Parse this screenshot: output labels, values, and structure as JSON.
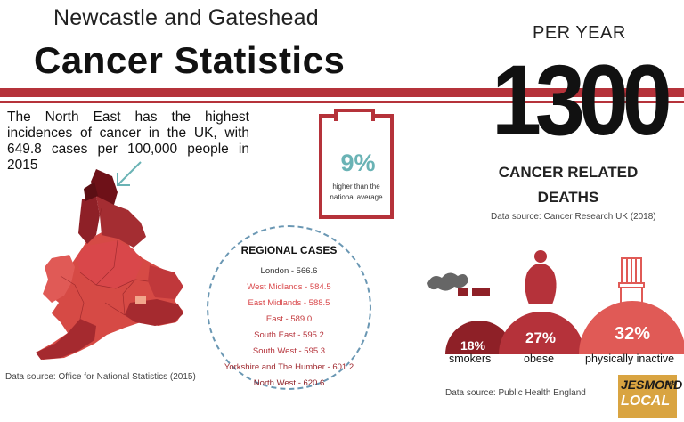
{
  "header": {
    "subtitle": "Newcastle and Gateshead",
    "title": "Cancer Statistics"
  },
  "intro": {
    "text": "The North East has the highest incidences of cancer in the UK, with 649.8 cases per 100,000 people in 2015"
  },
  "clipboard": {
    "percent": "9%",
    "note": "higher than the national average"
  },
  "deaths": {
    "per_year_label": "PER YEAR",
    "number": "1300",
    "label": "CANCER RELATED DEATHS",
    "source": "Data source: Cancer Research UK (2018)"
  },
  "regional": {
    "title": "REGIONAL CASES",
    "items": [
      {
        "text": "London - 566.6",
        "color": "#333333"
      },
      {
        "text": "West Midlands - 584.5",
        "color": "#d9474a"
      },
      {
        "text": "East Midlands - 588.5",
        "color": "#d9474a"
      },
      {
        "text": "East - 589.0",
        "color": "#c53a3d"
      },
      {
        "text": "South East - 595.2",
        "color": "#b5323a"
      },
      {
        "text": "South West - 595.3",
        "color": "#b5323a"
      },
      {
        "text": "Yorkshire and The Humber - 601.2",
        "color": "#a02a30"
      },
      {
        "text": "North West - 620.6",
        "color": "#8e2027"
      }
    ]
  },
  "map": {
    "source": "Data source: Office for National Statistics (2015)"
  },
  "risk_factors": {
    "items": [
      {
        "percent": "18%",
        "label": "smokers",
        "value": 18
      },
      {
        "percent": "27%",
        "label": "obese",
        "value": 27
      },
      {
        "percent": "32%",
        "label": "physically inactive",
        "value": 32
      }
    ],
    "source": "Data source: Public Health England"
  },
  "logo": {
    "line1": "JESMOND",
    "line2": "LOCAL",
    "tag": "NE2"
  },
  "colors": {
    "accent": "#b5323a",
    "teal": "#6ab3b5",
    "dark_red": "#8e2027",
    "light_red": "#e05a56"
  }
}
